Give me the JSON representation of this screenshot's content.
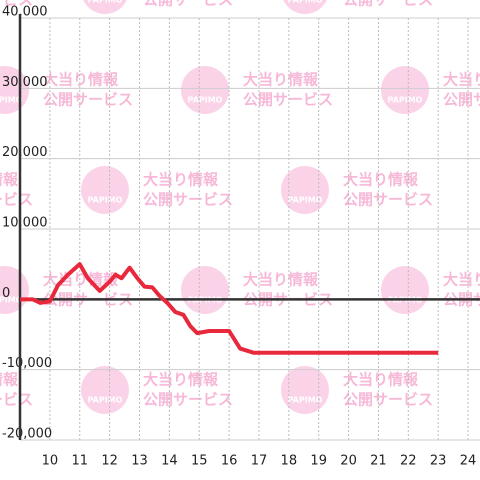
{
  "chart_data": {
    "type": "line",
    "watermark": [
      "大当り情報",
      "公開サービス",
      "PAPIMO"
    ],
    "xlim": [
      9,
      24.4
    ],
    "xticks": [
      10,
      11,
      12,
      13,
      14,
      15,
      16,
      17,
      18,
      19,
      20,
      21,
      22,
      23,
      24
    ],
    "ylim": [
      -20000,
      40000
    ],
    "yticks": [
      {
        "value": -20000,
        "label": "-20,000"
      },
      {
        "value": -10000,
        "label": "-10,000"
      },
      0,
      {
        "value": 10000,
        "label": "10,000"
      },
      {
        "value": 20000,
        "label": "20,000"
      },
      {
        "value": 30000,
        "label": "30,000"
      },
      {
        "value": 40000,
        "label": "40,000"
      }
    ],
    "grid": true,
    "series": [
      {
        "color": "#e8283c",
        "x": [
          9,
          9.43,
          9.67,
          10,
          10.27,
          10.6,
          11,
          11.27,
          11.67,
          12,
          12.2,
          12.4,
          12.67,
          12.93,
          13.17,
          13.43,
          13.67,
          13.93,
          14.2,
          14.47,
          14.7,
          14.93,
          15.33,
          16,
          16.37,
          16.83,
          23
        ],
        "values": [
          0,
          0,
          -500,
          -300,
          2000,
          3500,
          5000,
          3000,
          1200,
          2500,
          3500,
          3000,
          4500,
          3000,
          1800,
          1700,
          500,
          -500,
          -1800,
          -2200,
          -3800,
          -4800,
          -4500,
          -4500,
          -7000,
          -7600,
          -7600
        ]
      }
    ]
  }
}
